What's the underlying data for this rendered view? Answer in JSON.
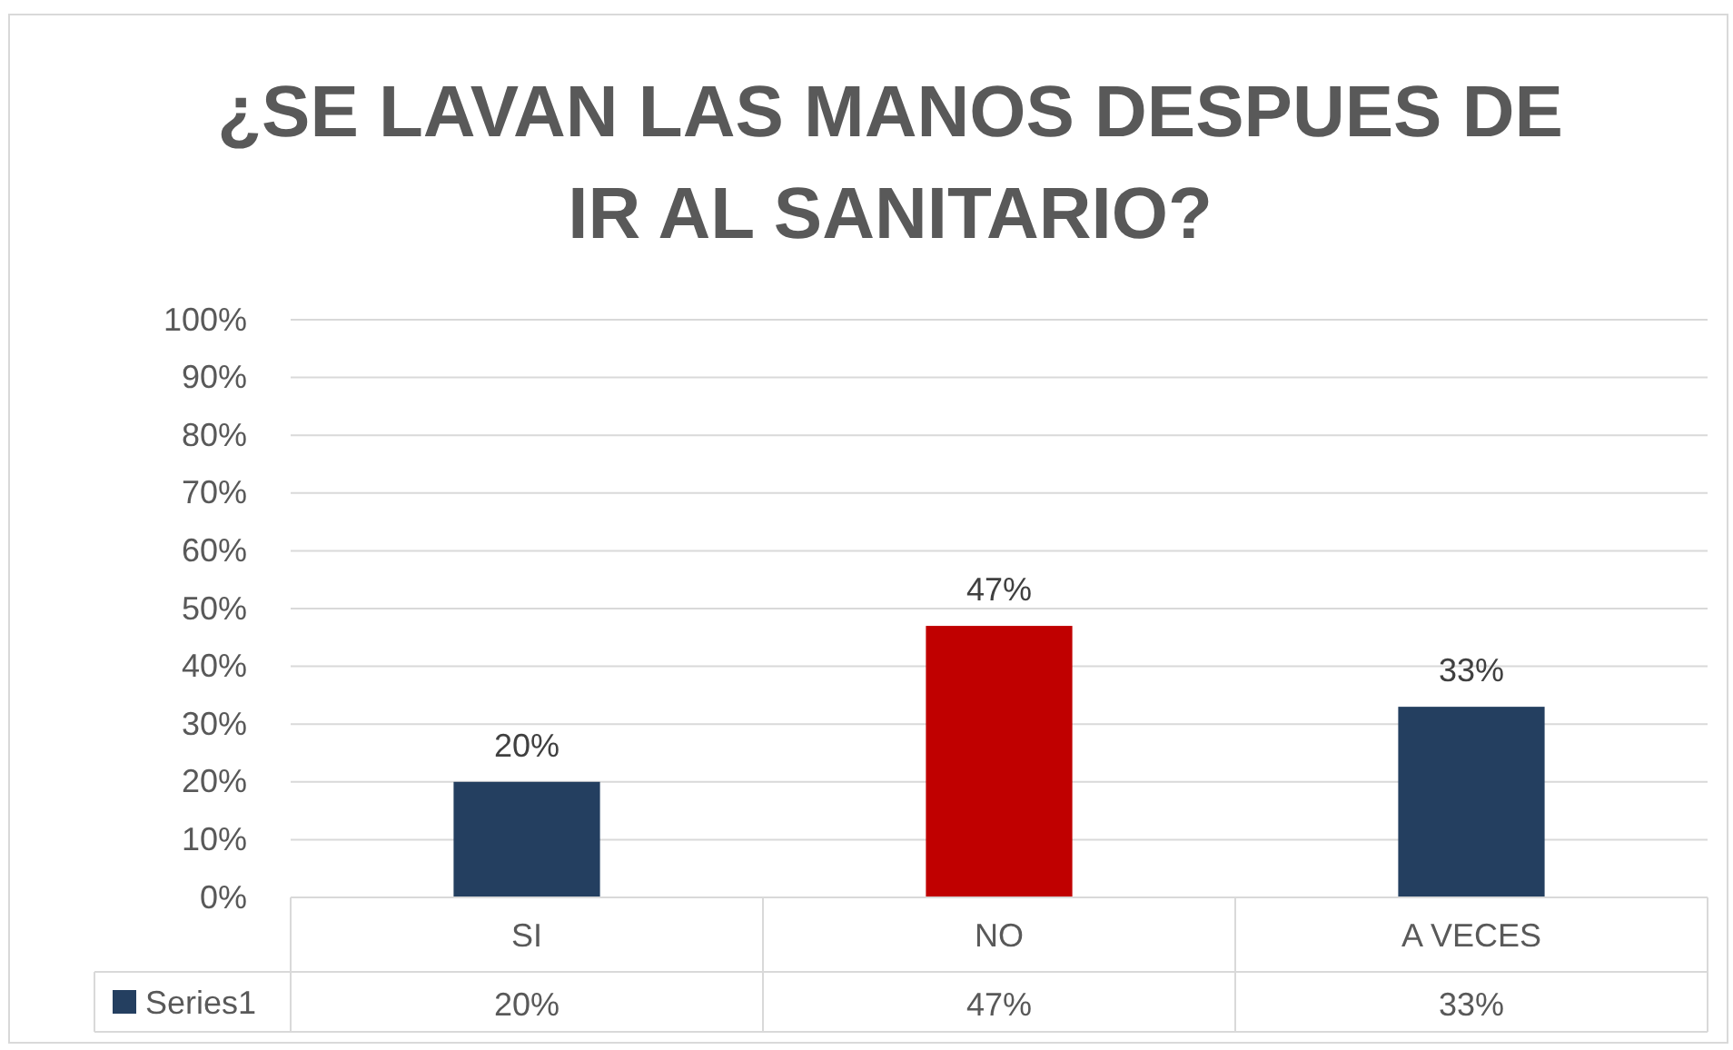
{
  "chart_data": {
    "type": "bar",
    "title": "¿SE LAVAN LAS MANOS DESPUES DE IR AL SANITARIO?",
    "categories": [
      "SI",
      "NO",
      "A VECES"
    ],
    "series": [
      {
        "name": "Series1",
        "color": "#243f60",
        "colors": [
          "#243f60",
          "#c00000",
          "#243f60"
        ],
        "values": [
          20,
          47,
          33
        ]
      }
    ],
    "ylim": [
      0,
      100
    ],
    "yticks": [
      {
        "value": 0,
        "label": "0%"
      },
      {
        "value": 10,
        "label": "10%"
      },
      {
        "value": 20,
        "label": "20%"
      },
      {
        "value": 30,
        "label": "30%"
      },
      {
        "value": 40,
        "label": "40%"
      },
      {
        "value": 50,
        "label": "50%"
      },
      {
        "value": 60,
        "label": "60%"
      },
      {
        "value": 70,
        "label": "70%"
      },
      {
        "value": 80,
        "label": "80%"
      },
      {
        "value": 90,
        "label": "90%"
      },
      {
        "value": 100,
        "label": "100%"
      }
    ],
    "value_labels": [
      "20%",
      "47%",
      "33%"
    ],
    "grid": "y",
    "legend": "bottom"
  }
}
